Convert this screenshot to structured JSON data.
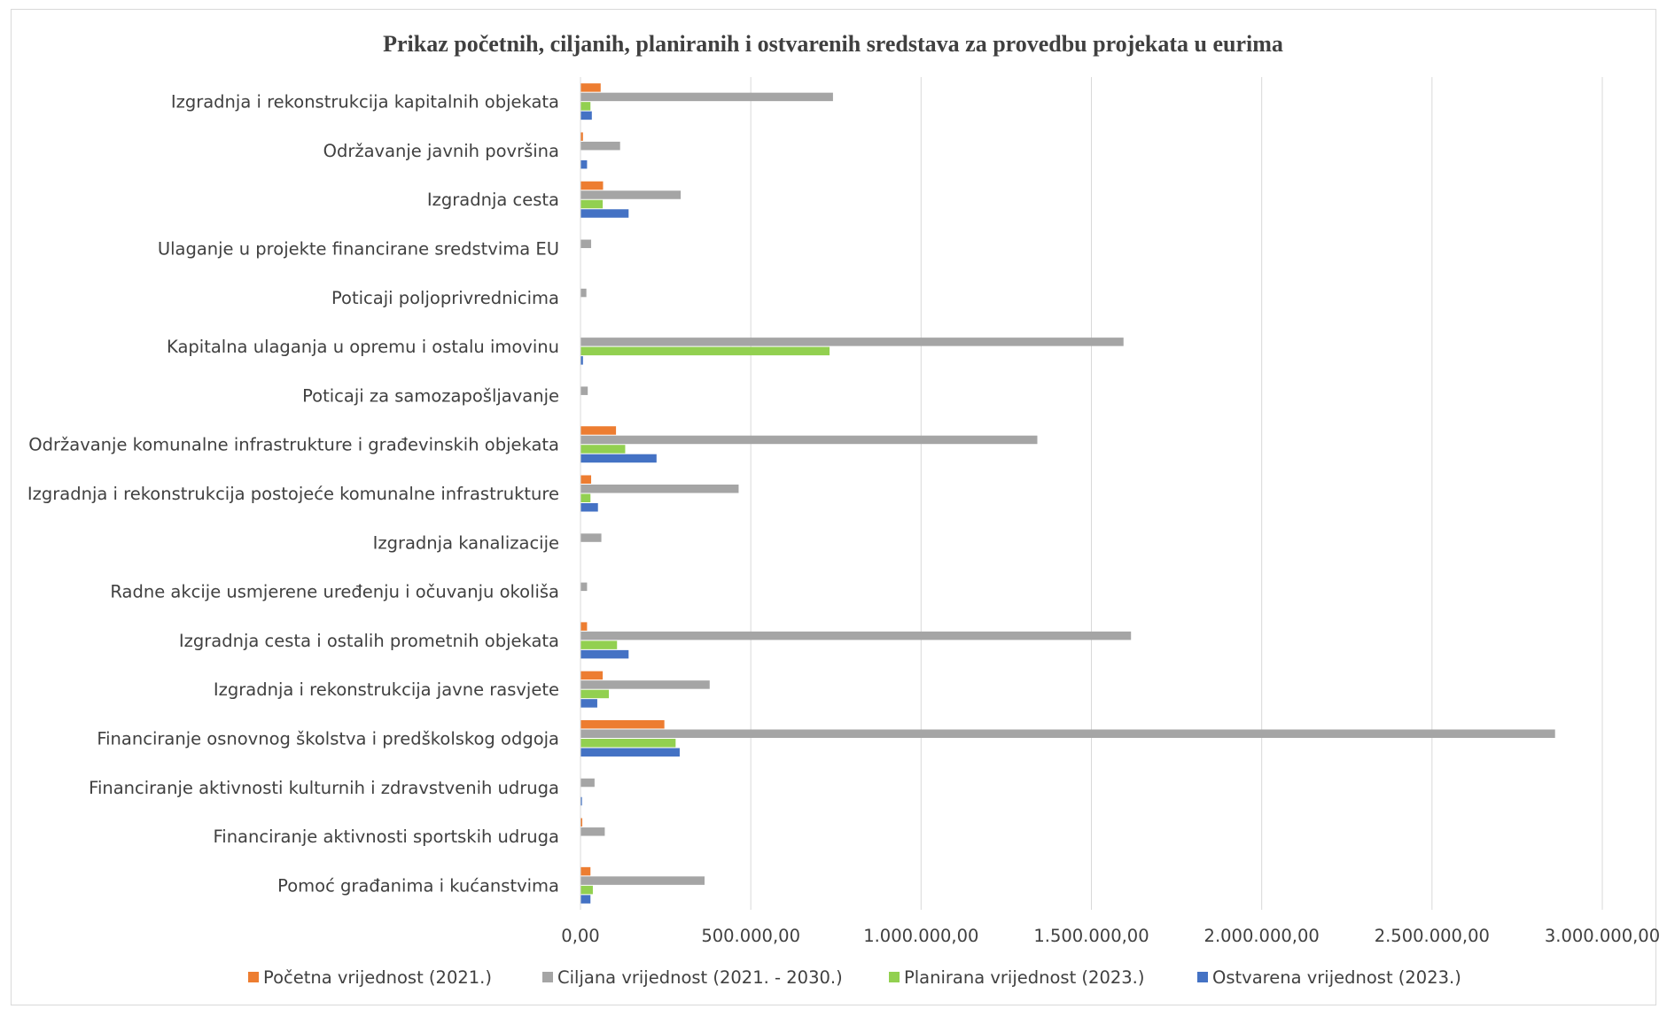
{
  "chart_data": {
    "type": "bar",
    "orientation": "horizontal",
    "title": "Prikaz početnih, ciljanih, planiranih i ostvarenih sredstava za provedbu projekata u eurima",
    "categories": [
      "Izgradnja i rekonstrukcija kapitalnih objekata",
      "Održavanje javnih površina",
      "Izgradnja cesta",
      "Ulaganje u projekte financirane sredstvima EU",
      "Poticaji poljoprivrednicima",
      "Kapitalna ulaganja u opremu i ostalu imovinu",
      "Poticaji za samozapošljavanje",
      "Održavanje komunalne infrastrukture i građevinskih objekata",
      "Izgradnja i rekonstrukcija postojeće komunalne infrastrukture",
      "Izgradnja kanalizacije",
      "Radne akcije usmjerene uređenju i očuvanju okoliša",
      "Izgradnja cesta i ostalih prometnih objekata",
      "Izgradnja i rekonstrukcija javne rasvjete",
      "Financiranje osnovnog školstva i predškolskog odgoja",
      "Financiranje aktivnosti kulturnih i zdravstvenih udruga",
      "Financiranje aktivnosti sportskih udruga",
      "Pomoć građanima i kućanstvima"
    ],
    "series": [
      {
        "name": "Početna vrijednost (2021.)",
        "color": "#ED7D31",
        "values": [
          58000,
          6000,
          65000,
          0,
          0,
          0,
          0,
          103000,
          30000,
          0,
          0,
          18000,
          64000,
          245000,
          0,
          4000,
          28000
        ]
      },
      {
        "name": "Ciljana vrijednost (2021. - 2030.)",
        "color": "#A5A5A5",
        "values": [
          740000,
          115000,
          293000,
          30000,
          16000,
          1593000,
          20000,
          1340000,
          463000,
          60000,
          18000,
          1615000,
          378000,
          2860000,
          40000,
          70000,
          363000
        ]
      },
      {
        "name": "Planirana vrijednost (2023.)",
        "color": "#92D050",
        "values": [
          28000,
          0,
          64000,
          0,
          0,
          730000,
          0,
          130000,
          28000,
          0,
          0,
          106000,
          82000,
          278000,
          0,
          0,
          35000
        ]
      },
      {
        "name": "Ostvarena vrijednost (2023.)",
        "color": "#4472C4",
        "values": [
          32000,
          18000,
          140000,
          0,
          0,
          6000,
          0,
          222000,
          50000,
          0,
          0,
          140000,
          48000,
          290000,
          3000,
          0,
          28000
        ]
      }
    ],
    "xlim": [
      0,
      3000000
    ],
    "x_ticks": [
      0,
      500000,
      1000000,
      1500000,
      2000000,
      2500000,
      3000000
    ],
    "x_tick_labels": [
      "0,00",
      "500.000,00",
      "1.000.000,00",
      "1.500.000,00",
      "2.000.000,00",
      "2.500.000,00",
      "3.000.000,00"
    ],
    "xlabel": "",
    "ylabel": "",
    "grid": "vertical",
    "legend_position": "bottom"
  }
}
